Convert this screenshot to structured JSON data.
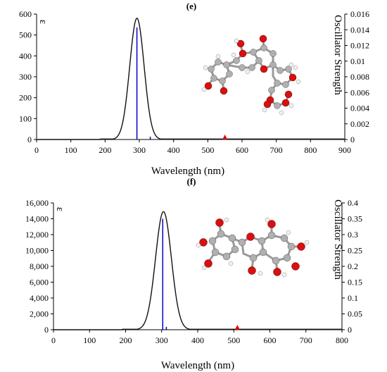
{
  "chart_data": [
    {
      "type": "line",
      "panel_label": "(e)",
      "xlabel": "Wavelength (nm)",
      "ylabel_left": "ε",
      "ylabel_right": "Oscillator Strength",
      "xlim": [
        0,
        900
      ],
      "ylim_left": [
        0,
        600
      ],
      "ylim_right": [
        0,
        0.016
      ],
      "x_ticks": [
        0,
        100,
        200,
        300,
        400,
        500,
        600,
        700,
        800,
        900
      ],
      "y_ticks_left": [
        0,
        100,
        200,
        300,
        400,
        500,
        600
      ],
      "y_ticks_left_labels": [
        "0",
        "100",
        "200",
        "300",
        "400",
        "500",
        "600"
      ],
      "y_ticks_right": [
        0,
        0.002,
        0.004,
        0.006,
        0.008,
        0.01,
        0.012,
        0.014,
        0.016
      ],
      "y_ticks_right_labels": [
        "0",
        "0.002",
        "0.004",
        "0.006",
        "0.008",
        "0.01",
        "0.012",
        "0.014",
        "0.016"
      ],
      "absorption_peak": {
        "x": 293,
        "y": 580,
        "sigma": 21
      },
      "baseline_start_x": 185,
      "oscillator_lines": [
        {
          "x": 293,
          "f": 0.0143
        },
        {
          "x": 332,
          "f": 0.0003
        }
      ],
      "marker": {
        "x": 550,
        "f": 0.0
      },
      "grid": false,
      "molecule_image": "3d-molecular-structure"
    },
    {
      "type": "line",
      "panel_label": "(f)",
      "xlabel": "Wavelength (nm)",
      "ylabel_left": "ε",
      "ylabel_right": "Oscillator Strength",
      "xlim": [
        0,
        800
      ],
      "ylim_left": [
        0,
        16000
      ],
      "ylim_right": [
        0,
        0.4
      ],
      "x_ticks": [
        0,
        100,
        200,
        300,
        400,
        500,
        600,
        700,
        800
      ],
      "y_ticks_left": [
        0,
        2000,
        4000,
        6000,
        8000,
        10000,
        12000,
        14000,
        16000
      ],
      "y_ticks_left_labels": [
        "0",
        "2,000",
        "4,000",
        "6,000",
        "8,000",
        "10,000",
        "12,000",
        "14,000",
        "16,000"
      ],
      "y_ticks_right": [
        0,
        0.05,
        0.1,
        0.15,
        0.2,
        0.25,
        0.3,
        0.35,
        0.4
      ],
      "y_ticks_right_labels": [
        "0",
        "0.05",
        "0.1",
        "0.15",
        "0.2",
        "0.25",
        "0.3",
        "0.35",
        "0.4"
      ],
      "absorption_peak": {
        "x": 305,
        "y": 14900,
        "sigma": 22
      },
      "baseline_start_x": 190,
      "oscillator_lines": [
        {
          "x": 303,
          "f": 0.35
        },
        {
          "x": 313,
          "f": 0.004
        }
      ],
      "marker": {
        "x": 510,
        "f": 0.0
      },
      "grid": false,
      "molecule_image": "3d-molecular-structure"
    }
  ]
}
